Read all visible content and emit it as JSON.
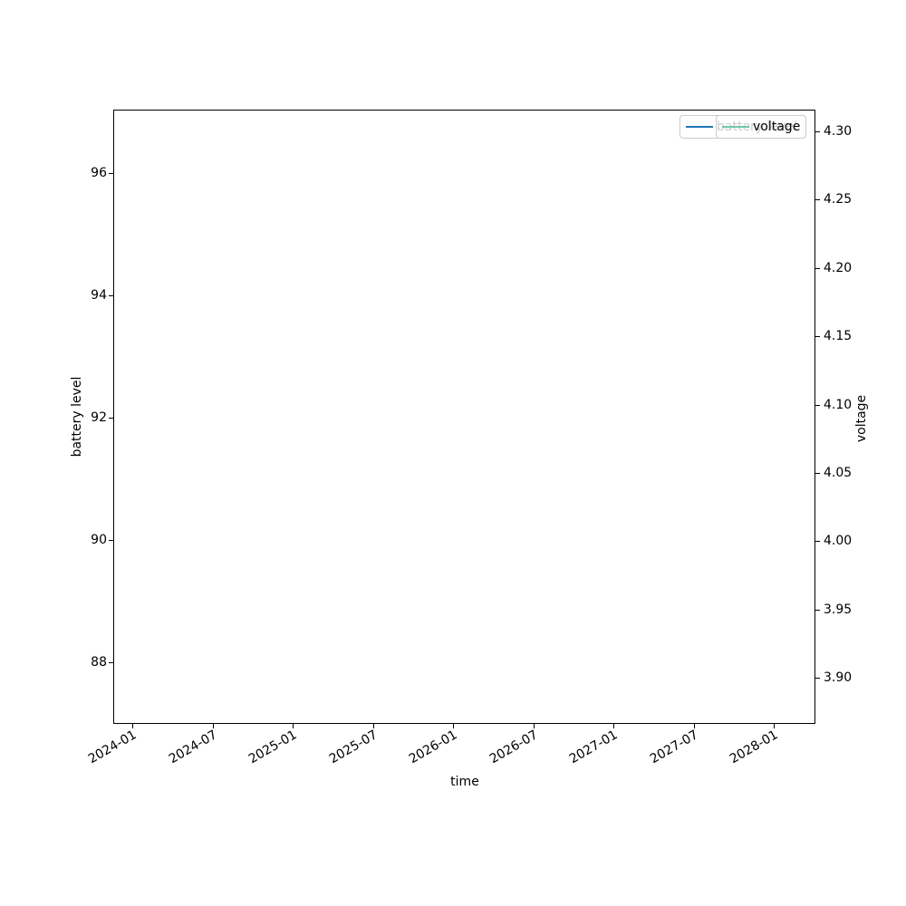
{
  "figure": {
    "background": "#ffffff",
    "title": "",
    "xlabel": "time",
    "ylabel_left": "battery level",
    "ylabel_right": "voltage"
  },
  "legend": {
    "entries": [
      {
        "label": "battery level",
        "color": "#1f77b4",
        "obscured_by_overlapping_legend": true
      },
      {
        "label": "voltage",
        "color": "#6fc7ae",
        "obscured_by_overlapping_legend": false
      }
    ],
    "frame_edge_color": "#cccccc",
    "frame_face_color": "rgba(255,255,255,0.8)",
    "position": "upper right"
  },
  "axes": {
    "x_ticks": [
      "2024-01",
      "2024-07",
      "2025-01",
      "2025-07",
      "2026-01",
      "2026-07",
      "2027-01",
      "2027-07",
      "2028-01"
    ],
    "x_tick_rotation_deg": 30,
    "y_left_ticks": [
      "96",
      "94",
      "92",
      "90",
      "88"
    ],
    "y_right_ticks": [
      "4.30",
      "4.25",
      "4.20",
      "4.15",
      "4.10",
      "4.05",
      "4.00",
      "3.95",
      "3.90"
    ],
    "spine_color": "#000000"
  },
  "chart_data": {
    "type": "line",
    "title": "",
    "xlabel": "time",
    "ylabel": "battery level",
    "ylabel_right": "voltage",
    "x_tick_labels": [
      "2024-01",
      "2024-07",
      "2025-01",
      "2025-07",
      "2026-01",
      "2026-07",
      "2027-01",
      "2027-07",
      "2028-01"
    ],
    "y_left_ticks": [
      88,
      90,
      92,
      94,
      96
    ],
    "y_right_ticks": [
      3.9,
      3.95,
      4.0,
      4.05,
      4.1,
      4.15,
      4.2,
      4.25,
      4.3
    ],
    "ylim_left": [
      87.0,
      97.0
    ],
    "ylim_right": [
      3.87,
      4.32
    ],
    "grid": false,
    "legend_position": "upper right",
    "series": [
      {
        "name": "battery level",
        "axis": "left",
        "color": "#1f77b4",
        "x": [],
        "values": []
      },
      {
        "name": "voltage",
        "axis": "right",
        "color": "#6fc7ae",
        "x": [],
        "values": []
      }
    ],
    "note": "no data lines are visible inside the plot area; only axes, ticks and the two overlapping legends are rendered"
  }
}
